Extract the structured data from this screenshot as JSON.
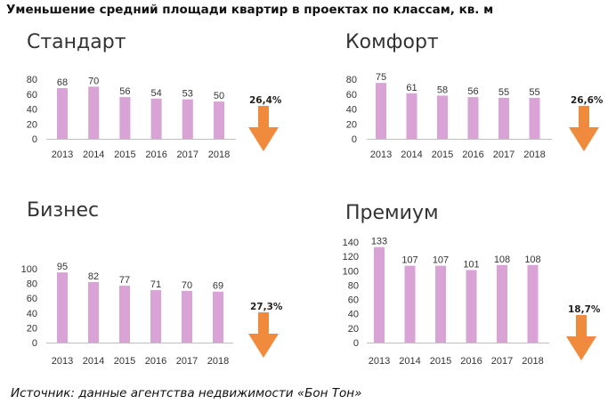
{
  "title": "Уменьшение средний площади квартир в проектах по классам, кв. м",
  "source": "Источник: данные агентства недвижимости «Бон Тон»",
  "colors": {
    "bar": "#d9a3d6",
    "arrow": "#f08a3c",
    "axis": "#bfbfbf"
  },
  "chart_data": [
    {
      "type": "bar",
      "title": "Стандарт",
      "categories": [
        "2013",
        "2014",
        "2015",
        "2016",
        "2017",
        "2018"
      ],
      "values": [
        68,
        70,
        56,
        54,
        53,
        50
      ],
      "yticks": [
        0,
        20,
        40,
        60,
        80
      ],
      "ylim": [
        0,
        80
      ],
      "change_label": "26,4%"
    },
    {
      "type": "bar",
      "title": "Комфорт",
      "categories": [
        "2013",
        "2014",
        "2015",
        "2016",
        "2017",
        "2018"
      ],
      "values": [
        75,
        61,
        58,
        56,
        55,
        55
      ],
      "yticks": [
        0,
        20,
        40,
        60,
        80
      ],
      "ylim": [
        0,
        80
      ],
      "change_label": "26,6%"
    },
    {
      "type": "bar",
      "title": "Бизнес",
      "categories": [
        "2013",
        "2014",
        "2015",
        "2016",
        "2017",
        "2018"
      ],
      "values": [
        95,
        82,
        77,
        71,
        70,
        69
      ],
      "yticks": [
        0,
        20,
        40,
        60,
        80,
        100
      ],
      "ylim": [
        0,
        100
      ],
      "change_label": "27,3%"
    },
    {
      "type": "bar",
      "title": "Премиум",
      "categories": [
        "2013",
        "2014",
        "2015",
        "2016",
        "2017",
        "2018"
      ],
      "values": [
        133,
        107,
        107,
        101,
        108,
        108
      ],
      "yticks": [
        0,
        20,
        40,
        60,
        80,
        100,
        120,
        140
      ],
      "ylim": [
        0,
        140
      ],
      "change_label": "18,7%"
    }
  ]
}
